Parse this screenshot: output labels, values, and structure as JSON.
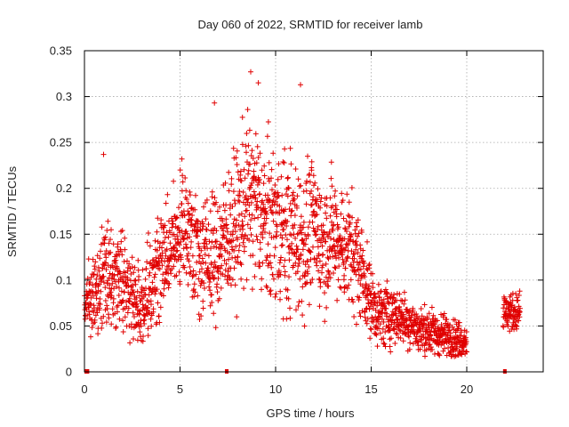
{
  "chart_data": {
    "type": "scatter",
    "title": "Day 060 of 2022, SRMTID for receiver lamb",
    "xlabel": "GPS time / hours",
    "ylabel": "SRMTID / TECUs",
    "xlim": [
      0,
      24
    ],
    "ylim": [
      0,
      0.35
    ],
    "x_ticks": [
      0,
      5,
      10,
      15,
      20
    ],
    "x_tick_labels": [
      "0",
      "5",
      "10",
      "15",
      "20"
    ],
    "y_ticks": [
      0,
      0.05,
      0.1,
      0.15,
      0.2,
      0.25,
      0.3,
      0.35
    ],
    "y_tick_labels": [
      "0",
      "0.05",
      "0.1",
      "0.15",
      "0.2",
      "0.25",
      "0.3",
      "0.35"
    ],
    "grid": true,
    "marker": "+",
    "color": "#e00000",
    "series_name": "SRMTID",
    "envelope": {
      "x": [
        0.0,
        0.5,
        1.0,
        1.5,
        2.0,
        2.5,
        3.0,
        3.5,
        4.0,
        4.5,
        5.0,
        5.5,
        6.0,
        6.5,
        7.0,
        7.5,
        8.0,
        8.5,
        9.0,
        9.5,
        10.0,
        10.5,
        11.0,
        11.5,
        12.0,
        12.5,
        13.0,
        13.5,
        14.0,
        14.5,
        15.0,
        15.5,
        16.0,
        16.5,
        17.0,
        17.5,
        18.0,
        18.5,
        19.0,
        19.5,
        20.0
      ],
      "median": [
        0.075,
        0.085,
        0.11,
        0.105,
        0.1,
        0.085,
        0.07,
        0.09,
        0.12,
        0.13,
        0.15,
        0.155,
        0.13,
        0.12,
        0.13,
        0.15,
        0.16,
        0.19,
        0.18,
        0.16,
        0.16,
        0.15,
        0.15,
        0.14,
        0.16,
        0.14,
        0.15,
        0.14,
        0.13,
        0.11,
        0.075,
        0.06,
        0.065,
        0.06,
        0.055,
        0.045,
        0.045,
        0.04,
        0.04,
        0.035,
        0.035
      ],
      "spread": [
        0.02,
        0.03,
        0.04,
        0.035,
        0.035,
        0.035,
        0.035,
        0.04,
        0.04,
        0.04,
        0.04,
        0.04,
        0.045,
        0.045,
        0.05,
        0.05,
        0.055,
        0.06,
        0.065,
        0.06,
        0.06,
        0.06,
        0.06,
        0.055,
        0.05,
        0.05,
        0.045,
        0.045,
        0.045,
        0.04,
        0.025,
        0.025,
        0.025,
        0.02,
        0.02,
        0.018,
        0.018,
        0.016,
        0.015,
        0.014,
        0.012
      ]
    },
    "late_segment": {
      "x_range": [
        21.9,
        22.8
      ],
      "median": 0.065,
      "spread": 0.015
    },
    "data_gaps": [
      {
        "x_range": [
          0.0,
          0.25
        ],
        "y": 0
      },
      {
        "x_range": [
          7.35,
          7.45
        ],
        "y": 0
      },
      {
        "x_range": [
          21.9,
          22.05
        ],
        "y": 0
      }
    ],
    "peaks": [
      {
        "x": 8.7,
        "y": 0.327
      },
      {
        "x": 9.1,
        "y": 0.315
      },
      {
        "x": 11.3,
        "y": 0.313
      },
      {
        "x": 6.8,
        "y": 0.293
      },
      {
        "x": 1.0,
        "y": 0.237
      },
      {
        "x": 5.1,
        "y": 0.232
      }
    ]
  }
}
